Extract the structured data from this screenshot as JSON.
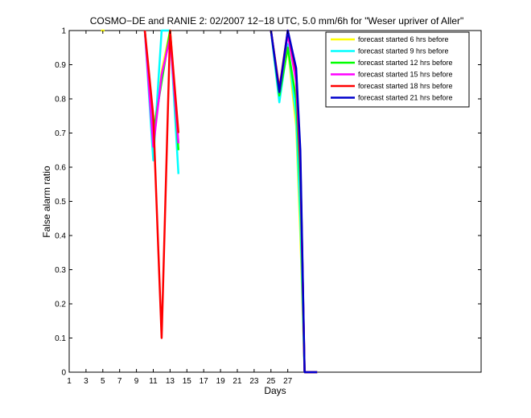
{
  "chart_data": {
    "type": "line",
    "title": "COSMO−DE and RANIE 2: 02/2007 12−18 UTC, 5.0 mm/6h for \"Weser upriver of Aller\"",
    "xlabel": "Days",
    "ylabel": "False alarm ratio",
    "xlim": [
      1,
      50
    ],
    "ylim": [
      0,
      1
    ],
    "xticks": [
      1,
      3,
      5,
      7,
      9,
      11,
      13,
      15,
      17,
      19,
      21,
      23,
      25,
      27
    ],
    "yticks": [
      0,
      0.1,
      0.2,
      0.3,
      0.4,
      0.5,
      0.6,
      0.7,
      0.8,
      0.9,
      1
    ],
    "ytick_labels": [
      "0",
      "0.1",
      "0.2",
      "0.3",
      "0.4",
      "0.5",
      "0.6",
      "0.7",
      "0.8",
      "0.9",
      "1"
    ],
    "grid": false,
    "legend_position": "top-right",
    "series": [
      {
        "name": "forecast started 6 hrs before",
        "color": "#ffff00",
        "segments": [
          [
            [
              4.8,
              1.0
            ],
            [
              5.2,
              1.0
            ]
          ],
          [
            [
              10,
              1.0
            ],
            [
              11,
              0.68
            ],
            [
              12,
              0.88
            ],
            [
              13,
              1.0
            ],
            [
              14,
              0.67
            ]
          ],
          [
            [
              25,
              1.0
            ],
            [
              26,
              0.82
            ],
            [
              27,
              0.95
            ],
            [
              28,
              0.72
            ],
            [
              28.5,
              0.4
            ],
            [
              29,
              0.0
            ],
            [
              30.5,
              0.0
            ]
          ]
        ]
      },
      {
        "name": "forecast started 9 hrs before",
        "color": "#00ffff",
        "segments": [
          [
            [
              10,
              1.0
            ],
            [
              11,
              0.62
            ],
            [
              12,
              1.0
            ],
            [
              13,
              1.0
            ],
            [
              14,
              0.58
            ]
          ],
          [
            [
              25,
              1.0
            ],
            [
              26,
              0.79
            ],
            [
              27,
              0.96
            ],
            [
              28,
              0.75
            ],
            [
              28.5,
              0.45
            ],
            [
              29,
              0.0
            ],
            [
              30.5,
              0.0
            ]
          ]
        ]
      },
      {
        "name": "forecast started 12 hrs before",
        "color": "#00ff00",
        "segments": [
          [
            [
              10,
              1.0
            ],
            [
              11,
              0.7
            ],
            [
              12,
              0.85
            ],
            [
              13,
              1.0
            ],
            [
              14,
              0.65
            ]
          ],
          [
            [
              25,
              1.0
            ],
            [
              26,
              0.81
            ],
            [
              27,
              0.95
            ],
            [
              28,
              0.8
            ],
            [
              28.5,
              0.55
            ],
            [
              29,
              0.0
            ],
            [
              30.5,
              0.0
            ]
          ]
        ]
      },
      {
        "name": "forecast started 15 hrs before",
        "color": "#ff00ff",
        "segments": [
          [
            [
              10,
              1.0
            ],
            [
              11,
              0.66
            ],
            [
              12,
              0.87
            ],
            [
              13,
              0.98
            ],
            [
              14,
              0.67
            ]
          ],
          [
            [
              25,
              1.0
            ],
            [
              26,
              0.82
            ],
            [
              27,
              0.99
            ],
            [
              28,
              0.85
            ],
            [
              28.5,
              0.6
            ],
            [
              29,
              0.0
            ],
            [
              30.5,
              0.0
            ]
          ]
        ]
      },
      {
        "name": "forecast started 18 hrs before",
        "color": "#ff0000",
        "segments": [
          [
            [
              10,
              1.0
            ],
            [
              11,
              0.75
            ],
            [
              12,
              0.1
            ],
            [
              13,
              1.0
            ],
            [
              14,
              0.7
            ]
          ],
          [
            [
              25,
              1.0
            ],
            [
              26,
              0.83
            ],
            [
              27,
              1.0
            ],
            [
              28,
              0.88
            ],
            [
              28.5,
              0.62
            ],
            [
              29,
              0.0
            ],
            [
              30.5,
              0.0
            ]
          ]
        ]
      },
      {
        "name": "forecast started 21 hrs before",
        "color": "#0000cc",
        "segments": [
          [
            [
              25,
              1.0
            ],
            [
              26,
              0.82
            ],
            [
              27,
              1.0
            ],
            [
              28,
              0.89
            ],
            [
              28.5,
              0.65
            ],
            [
              29,
              0.0
            ],
            [
              30.5,
              0.0
            ]
          ]
        ]
      }
    ]
  }
}
